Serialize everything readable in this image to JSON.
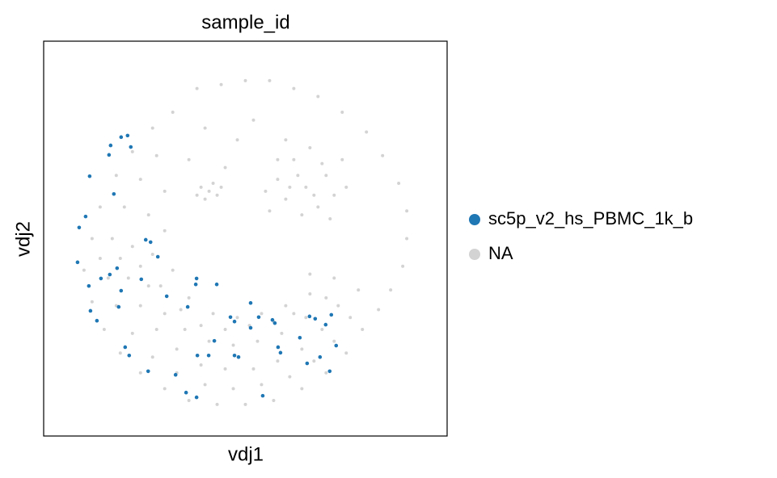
{
  "chart_data": {
    "type": "scatter",
    "title": "sample_id",
    "x_label": "vdj1",
    "y_label": "vdj2",
    "xlim": [
      0,
      100
    ],
    "ylim": [
      0,
      100
    ],
    "grid": false,
    "legend": "right",
    "series": [
      {
        "name": "sc5p_v2_hs_PBMC_1k_b",
        "color": "#1f77b4",
        "x": [
          20.8,
          19.2,
          16.6,
          16.2,
          21.6,
          11.4,
          17.4,
          8.8,
          10.4,
          25.3,
          26.5,
          28.3,
          8.4,
          18.2,
          16.4,
          14.2,
          11.2,
          19.2,
          24.2,
          37.9,
          37.7,
          42.9,
          35.7,
          30.5,
          11.6,
          13.2,
          18.6,
          51.3,
          46.3,
          47.3,
          56.7,
          57.3,
          53.3,
          65.9,
          67.3,
          71.3,
          69.9,
          51.3,
          42.3,
          40.9,
          38.1,
          47.3,
          48.3,
          58.1,
          58.7,
          63.5,
          65.3,
          68.5,
          72.5,
          70.9,
          54.3,
          35.3,
          37.9,
          32.7,
          25.9,
          21.2,
          20.2
        ],
        "y": [
          76.1,
          75.7,
          73.6,
          71.2,
          73.2,
          65.8,
          61.3,
          52.8,
          55.6,
          49.7,
          49.1,
          45.4,
          44.0,
          42.5,
          40.9,
          39.9,
          38.0,
          36.8,
          39.7,
          39.9,
          38.4,
          38.4,
          32.7,
          35.4,
          31.7,
          29.2,
          32.7,
          33.7,
          30.1,
          29.0,
          29.4,
          28.6,
          30.1,
          30.3,
          29.7,
          30.7,
          28.2,
          27.4,
          24.1,
          20.4,
          20.4,
          20.4,
          20.0,
          22.5,
          21.1,
          24.9,
          18.4,
          20.0,
          22.9,
          16.4,
          10.2,
          11.0,
          9.8,
          15.5,
          16.4,
          20.4,
          22.5
        ]
      },
      {
        "name": "NA",
        "color": "#d3d3d3",
        "x": [
          12,
          14,
          18,
          22,
          27,
          32,
          10,
          12,
          15,
          19,
          24,
          30,
          36,
          43,
          50,
          57,
          64,
          70,
          75,
          79,
          17,
          20,
          24,
          28,
          16,
          18,
          22,
          27,
          33,
          40,
          47,
          54,
          61,
          67,
          72,
          76,
          22,
          26,
          30,
          21,
          24,
          28,
          33,
          39,
          45,
          52,
          58,
          64,
          69,
          73,
          27,
          30,
          26,
          30,
          35,
          41,
          47,
          53,
          59,
          65,
          70,
          32,
          36,
          42,
          48,
          54,
          60,
          66,
          14,
          19,
          24,
          29,
          34,
          39,
          45,
          51,
          57,
          62,
          50,
          56,
          62,
          68,
          74,
          80,
          84,
          88,
          90,
          90,
          89,
          86,
          83,
          78,
          72,
          66,
          44,
          38,
          65,
          60,
          70,
          62,
          68,
          58,
          72,
          64,
          55,
          74,
          60,
          66,
          71,
          56,
          69,
          63,
          67,
          61,
          75,
          58,
          41,
          39,
          43,
          40,
          42,
          38,
          44,
          48,
          52,
          45,
          40,
          36
        ],
        "y": [
          50,
          58,
          66,
          72,
          78,
          82,
          42,
          34,
          27,
          21,
          16,
          12,
          9,
          8,
          8,
          9,
          12,
          16,
          21,
          27,
          50,
          58,
          65,
          71,
          40,
          33,
          26,
          20,
          16,
          13,
          12,
          13,
          15,
          19,
          24,
          30,
          48,
          56,
          62,
          40,
          33,
          27,
          22,
          18,
          17,
          17,
          19,
          22,
          27,
          33,
          46,
          52,
          38,
          31,
          27,
          24,
          23,
          24,
          26,
          30,
          35,
          42,
          35,
          31,
          30,
          31,
          33,
          36,
          45,
          45,
          43,
          38,
          32,
          28,
          27,
          28,
          29,
          31,
          90,
          90,
          88,
          86,
          82,
          77,
          71,
          64,
          57,
          50,
          43,
          37,
          32,
          37,
          40,
          41,
          89,
          88,
          63,
          60,
          66,
          70,
          58,
          65,
          61,
          56,
          62,
          70,
          75,
          73,
          55,
          57,
          69,
          66,
          61,
          63,
          63,
          70,
          62,
          63,
          61,
          60,
          64,
          61,
          63,
          75,
          80,
          68,
          78,
          70
        ]
      }
    ]
  }
}
